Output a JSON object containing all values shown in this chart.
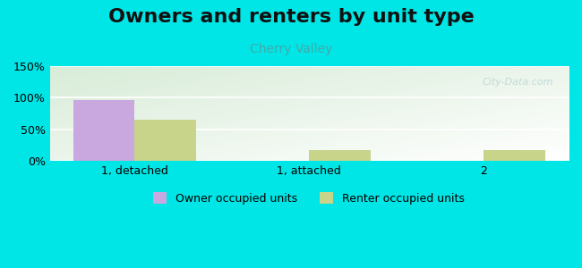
{
  "title": "Owners and renters by unit type",
  "subtitle": "Cherry Valley",
  "categories": [
    "1, detached",
    "1, attached",
    "2"
  ],
  "owner_values": [
    97,
    1,
    0
  ],
  "renter_values": [
    65,
    18,
    18
  ],
  "owner_color": "#c9a8e0",
  "renter_color": "#c8d48a",
  "ylim": [
    0,
    150
  ],
  "yticks": [
    0,
    50,
    100,
    150
  ],
  "ytick_labels": [
    "0%",
    "50%",
    "100%",
    "150%"
  ],
  "legend_owner": "Owner occupied units",
  "legend_renter": "Renter occupied units",
  "bg_outer": "#00e5e5",
  "watermark": "City-Data.com",
  "bar_width": 0.35,
  "title_fontsize": 16,
  "subtitle_fontsize": 10,
  "tick_fontsize": 9
}
